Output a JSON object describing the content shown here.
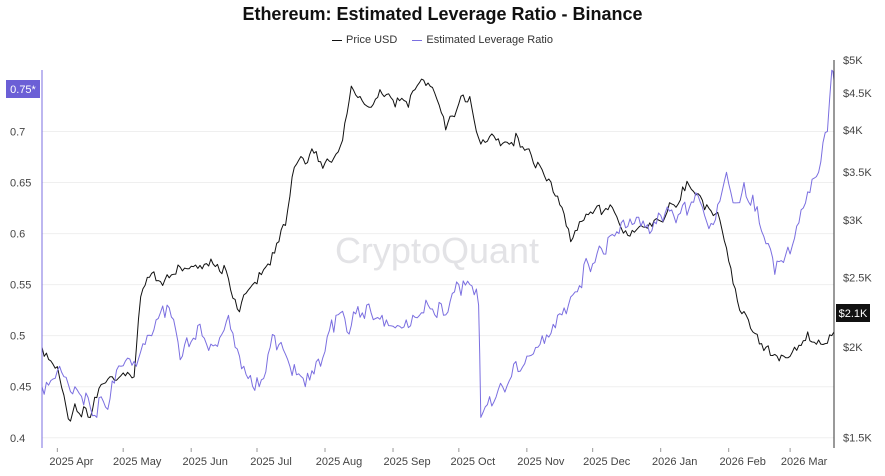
{
  "colors": {
    "price": "#111111",
    "leverage": "#7b6fe0",
    "axis": "#333333",
    "grid": "#efefef",
    "watermark": "#e3e3e6",
    "badge_price": "#111111",
    "badge_leverage": "#6b5fd6"
  },
  "chart_data": {
    "type": "line",
    "title": "Ethereum: Estimated Leverage Ratio - Binance",
    "watermark": "CryptoQuant",
    "legend": [
      "Price USD",
      "Estimated Leverage Ratio"
    ],
    "x_ticks": [
      "2025 Apr",
      "2025 May",
      "2025 Jun",
      "2025 Jul",
      "2025 Aug",
      "2025 Sep",
      "2025 Oct",
      "2025 Nov",
      "2025 Dec",
      "2026 Jan",
      "2026 Feb",
      "2026 Mar"
    ],
    "left_axis": {
      "label": "Estimated Leverage Ratio",
      "ticks": [
        0.4,
        0.45,
        0.5,
        0.55,
        0.6,
        0.65,
        0.7
      ],
      "range": [
        0.39,
        0.77
      ]
    },
    "right_axis": {
      "label": "Price USD",
      "scale": "log",
      "range": [
        1450,
        5000
      ],
      "tick_values": [
        1500,
        2000,
        2500,
        3000,
        3500,
        4000,
        4500,
        5000
      ],
      "tick_labels": [
        "$1.5K",
        "$2K",
        "$2.5K",
        "$3K",
        "$3.5K",
        "$4K",
        "$4.5K",
        "$5K"
      ]
    },
    "last_values": {
      "leverage_label": "0.75*",
      "leverage": 0.75,
      "price_label": "$2.1K",
      "price": 2100
    },
    "series": [
      {
        "name": "Price USD",
        "axis": "right",
        "x": [
          "2025-03-25",
          "2025-04-01",
          "2025-04-07",
          "2025-04-09",
          "2025-04-15",
          "2025-04-22",
          "2025-04-28",
          "2025-05-06",
          "2025-05-09",
          "2025-05-13",
          "2025-05-20",
          "2025-05-26",
          "2025-06-03",
          "2025-06-10",
          "2025-06-17",
          "2025-06-22",
          "2025-06-30",
          "2025-07-07",
          "2025-07-14",
          "2025-07-18",
          "2025-07-25",
          "2025-08-01",
          "2025-08-08",
          "2025-08-13",
          "2025-08-17",
          "2025-08-22",
          "2025-08-26",
          "2025-09-01",
          "2025-09-08",
          "2025-09-13",
          "2025-09-20",
          "2025-09-25",
          "2025-10-01",
          "2025-10-06",
          "2025-10-10",
          "2025-10-16",
          "2025-10-22",
          "2025-10-28",
          "2025-11-04",
          "2025-11-10",
          "2025-11-16",
          "2025-11-21",
          "2025-11-27",
          "2025-12-02",
          "2025-12-09",
          "2025-12-16",
          "2025-12-23",
          "2025-12-31",
          "2026-01-07",
          "2026-01-14",
          "2026-01-21",
          "2026-01-28",
          "2026-02-03",
          "2026-02-06",
          "2026-02-12",
          "2026-02-18",
          "2026-02-25",
          "2026-03-03",
          "2026-03-09",
          "2026-03-15",
          "2026-03-19",
          "2026-03-21"
        ],
        "values": [
          2000,
          1880,
          1580,
          1670,
          1600,
          1780,
          1800,
          1820,
          2350,
          2500,
          2480,
          2600,
          2600,
          2650,
          2550,
          2260,
          2460,
          2600,
          2950,
          3550,
          3700,
          3600,
          3800,
          4600,
          4450,
          4300,
          4550,
          4400,
          4300,
          4650,
          4500,
          4000,
          4350,
          4450,
          3900,
          3950,
          3850,
          3900,
          3600,
          3400,
          3150,
          2800,
          3000,
          3100,
          3150,
          2900,
          2950,
          3000,
          3150,
          3350,
          3100,
          3000,
          2450,
          2250,
          2100,
          2000,
          1950,
          2000,
          2100,
          2020,
          2080,
          2100
        ]
      },
      {
        "name": "Estimated Leverage Ratio",
        "axis": "left",
        "x": [
          "2025-03-25",
          "2025-04-02",
          "2025-04-09",
          "2025-04-16",
          "2025-04-23",
          "2025-04-30",
          "2025-05-07",
          "2025-05-14",
          "2025-05-21",
          "2025-05-28",
          "2025-06-04",
          "2025-06-11",
          "2025-06-18",
          "2025-06-25",
          "2025-07-02",
          "2025-07-09",
          "2025-07-16",
          "2025-07-23",
          "2025-07-30",
          "2025-08-06",
          "2025-08-13",
          "2025-08-20",
          "2025-08-27",
          "2025-09-03",
          "2025-09-10",
          "2025-09-17",
          "2025-09-24",
          "2025-10-01",
          "2025-10-08",
          "2025-10-10",
          "2025-10-11",
          "2025-10-18",
          "2025-10-25",
          "2025-11-01",
          "2025-11-08",
          "2025-11-15",
          "2025-11-22",
          "2025-11-29",
          "2025-12-06",
          "2025-12-13",
          "2025-12-20",
          "2025-12-27",
          "2026-01-03",
          "2026-01-10",
          "2026-01-17",
          "2026-01-24",
          "2026-01-31",
          "2026-02-04",
          "2026-02-08",
          "2026-02-15",
          "2026-02-22",
          "2026-03-01",
          "2026-03-08",
          "2026-03-14",
          "2026-03-18",
          "2026-03-20",
          "2026-03-21"
        ],
        "values": [
          0.45,
          0.47,
          0.45,
          0.43,
          0.43,
          0.47,
          0.47,
          0.5,
          0.53,
          0.48,
          0.51,
          0.49,
          0.52,
          0.47,
          0.45,
          0.5,
          0.47,
          0.45,
          0.47,
          0.52,
          0.51,
          0.53,
          0.52,
          0.51,
          0.52,
          0.53,
          0.52,
          0.55,
          0.54,
          0.53,
          0.42,
          0.44,
          0.46,
          0.48,
          0.5,
          0.52,
          0.54,
          0.57,
          0.58,
          0.6,
          0.61,
          0.6,
          0.62,
          0.62,
          0.64,
          0.61,
          0.66,
          0.63,
          0.65,
          0.61,
          0.56,
          0.58,
          0.63,
          0.66,
          0.7,
          0.76,
          0.75
        ]
      }
    ]
  }
}
